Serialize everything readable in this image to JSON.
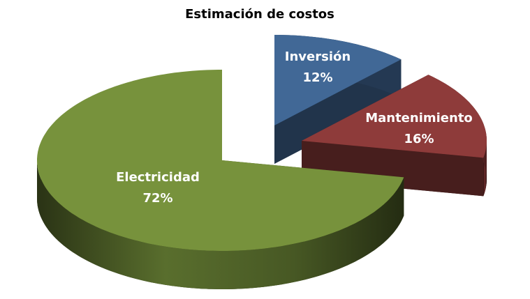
{
  "chart_data": {
    "type": "pie",
    "title": "Estimación de costos",
    "categories": [
      "Inversión",
      "Mantenimiento",
      "Electricidad"
    ],
    "values": [
      12,
      16,
      72
    ],
    "value_labels": [
      "12%",
      "16%",
      "72%"
    ],
    "colors": [
      "#416896",
      "#8e3b3a",
      "#77923c"
    ]
  }
}
